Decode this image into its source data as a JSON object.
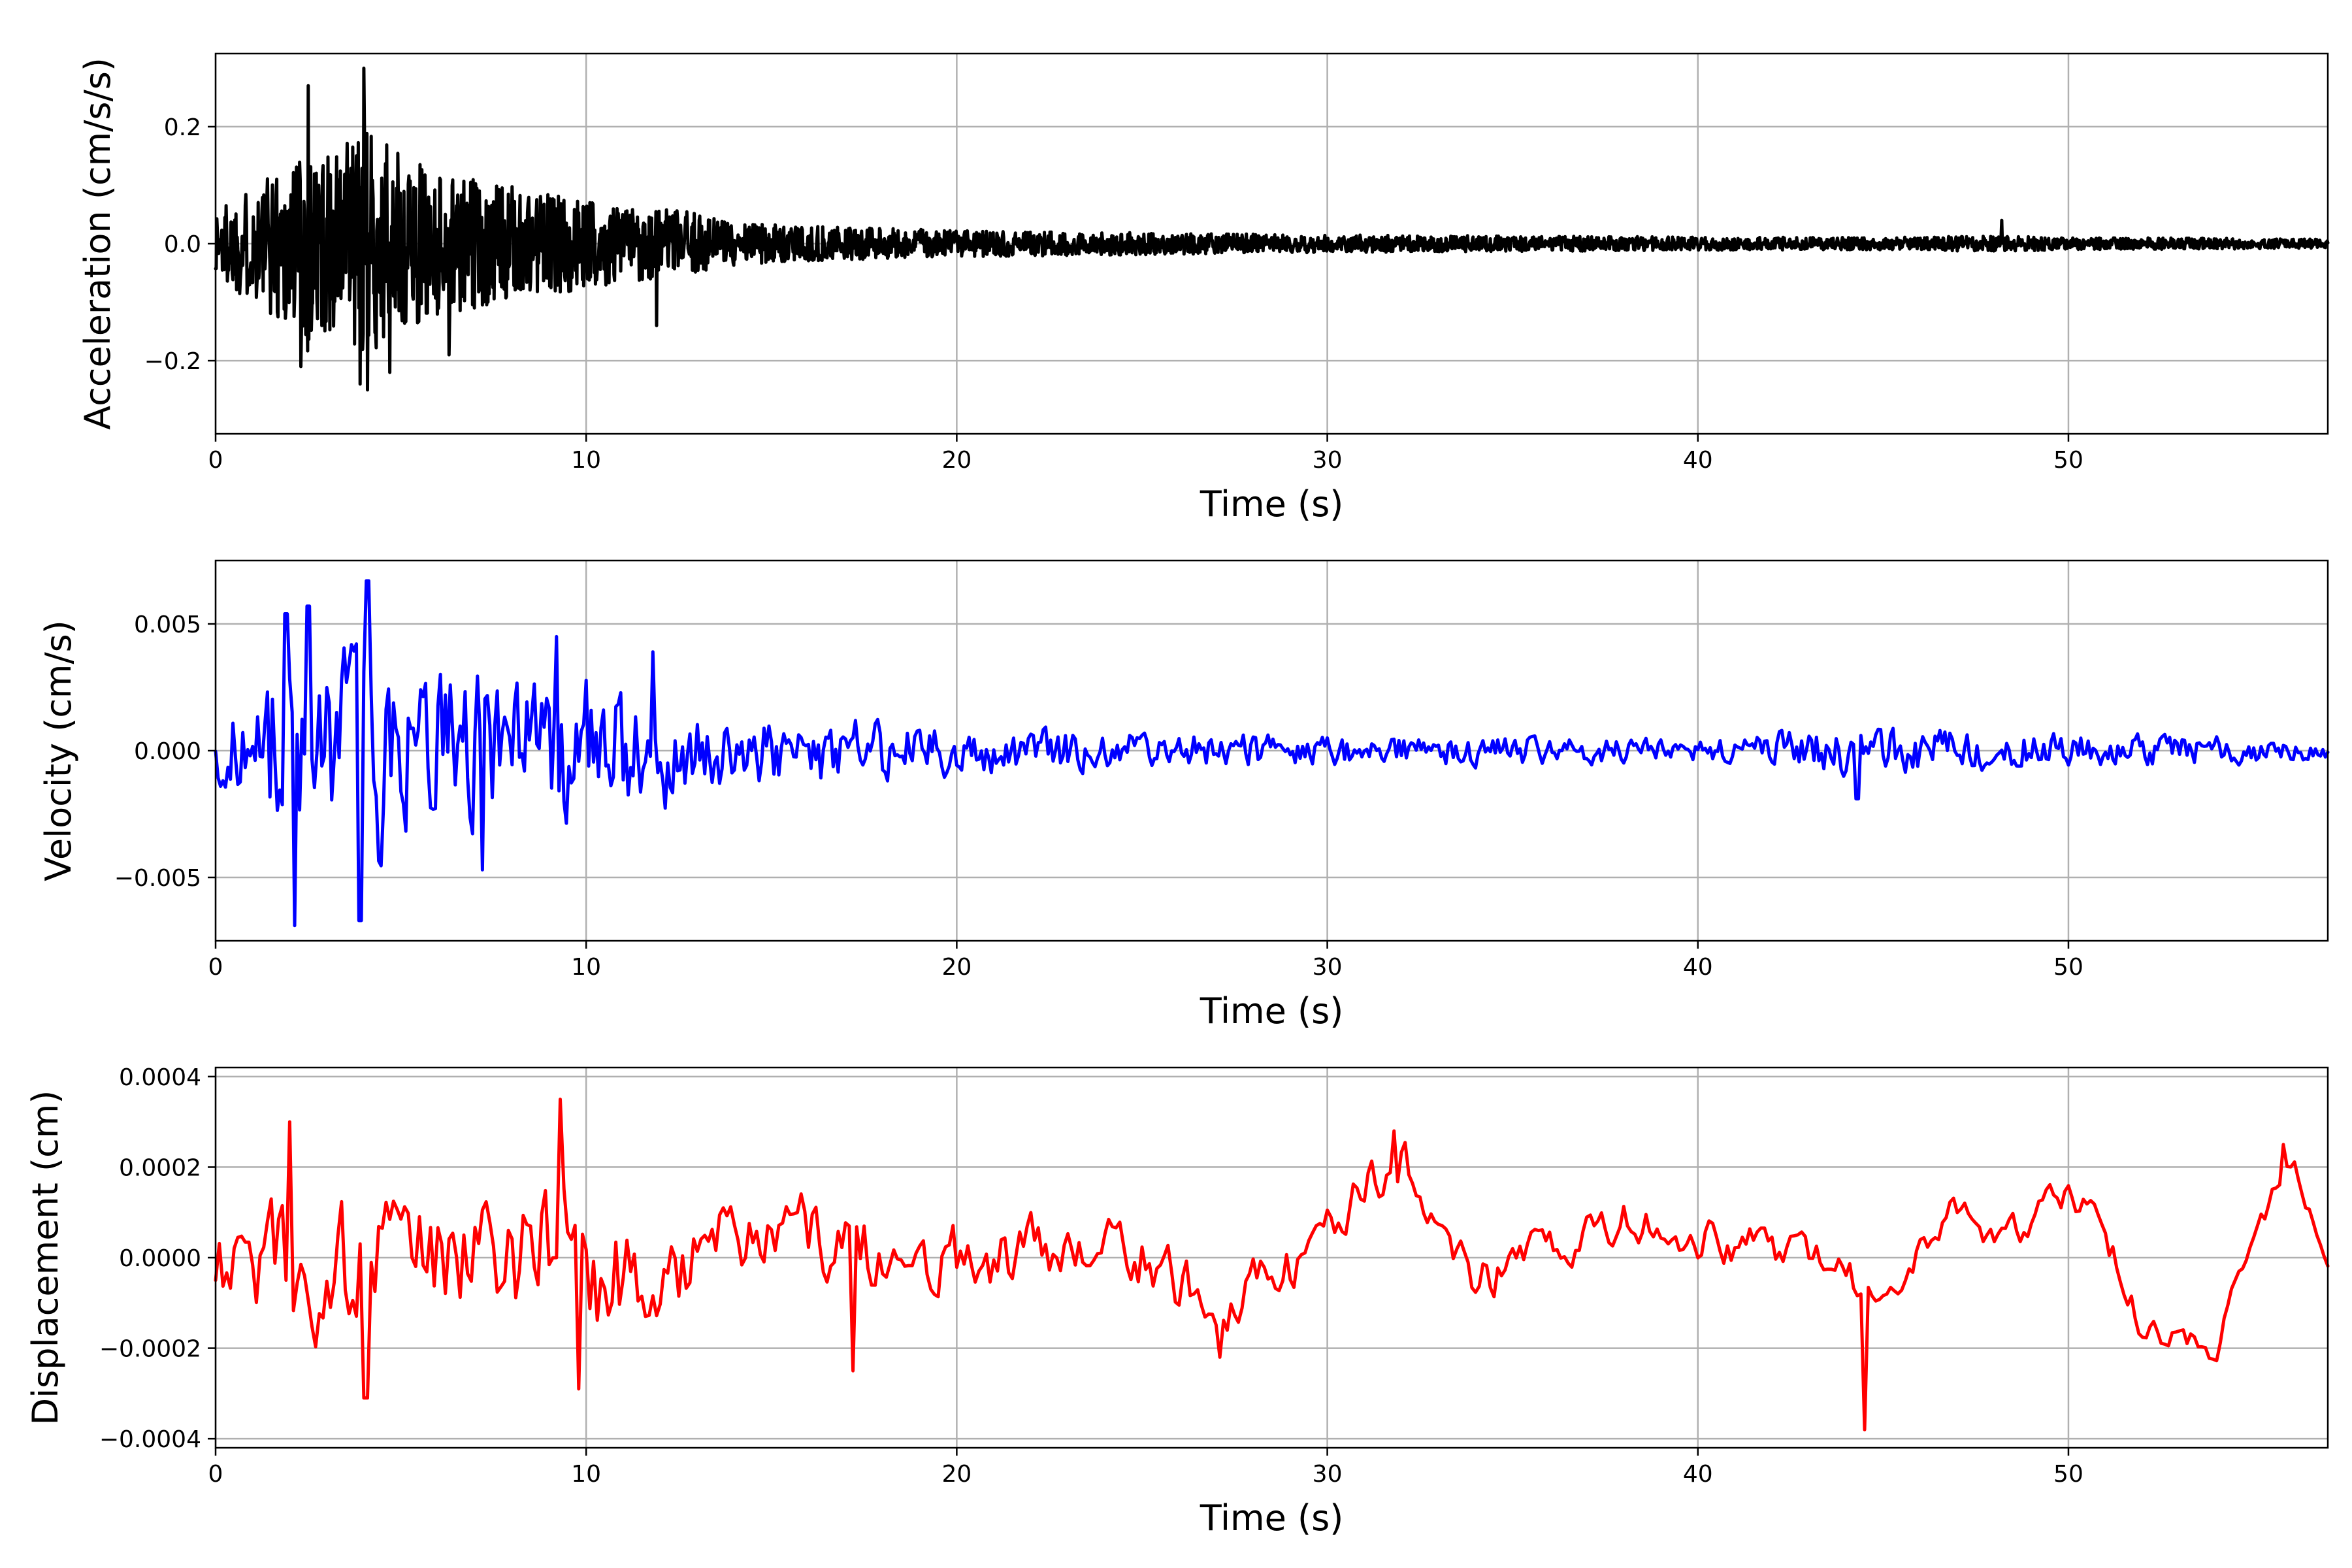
{
  "chart_data": [
    {
      "type": "line",
      "xlabel": "Time (s)",
      "ylabel": "Acceleration (cm/s/s)",
      "xlim": [
        0,
        57
      ],
      "ylim": [
        -0.325,
        0.325
      ],
      "xticks": [
        0,
        10,
        20,
        30,
        40,
        50
      ],
      "xtick_labels": [
        "0",
        "10",
        "20",
        "30",
        "40",
        "50"
      ],
      "yticks": [
        -0.2,
        0.0,
        0.2
      ],
      "ytick_labels": [
        "−0.2",
        "0.0",
        "0.2"
      ],
      "grid": true,
      "color": "#000000",
      "envelope": {
        "t": [
          0,
          1,
          2,
          2.5,
          3,
          4,
          5,
          6,
          7,
          8,
          9,
          10,
          11,
          12,
          13,
          14,
          16,
          18,
          20,
          25,
          30,
          35,
          40,
          45,
          48,
          50,
          55,
          57
        ],
        "amp": [
          0.09,
          0.13,
          0.2,
          0.26,
          0.2,
          0.27,
          0.2,
          0.17,
          0.15,
          0.13,
          0.12,
          0.1,
          0.09,
          0.08,
          0.07,
          0.05,
          0.04,
          0.035,
          0.03,
          0.025,
          0.02,
          0.018,
          0.015,
          0.014,
          0.018,
          0.014,
          0.012,
          0.01
        ]
      },
      "samples_per_second": 60,
      "spikes": [
        {
          "t": 2.5,
          "y": 0.27
        },
        {
          "t": 2.3,
          "y": -0.21
        },
        {
          "t": 4.0,
          "y": 0.3
        },
        {
          "t": 4.1,
          "y": -0.25
        },
        {
          "t": 3.9,
          "y": -0.24
        },
        {
          "t": 4.7,
          "y": -0.22
        },
        {
          "t": 11.9,
          "y": -0.14
        },
        {
          "t": 6.3,
          "y": -0.19
        },
        {
          "t": 48.2,
          "y": 0.04
        }
      ]
    },
    {
      "type": "line",
      "xlabel": "Time (s)",
      "ylabel": "Velocity (cm/s)",
      "xlim": [
        0,
        57
      ],
      "ylim": [
        -0.0075,
        0.0075
      ],
      "xticks": [
        0,
        10,
        20,
        30,
        40,
        50
      ],
      "xtick_labels": [
        "0",
        "10",
        "20",
        "30",
        "40",
        "50"
      ],
      "yticks": [
        -0.005,
        0.0,
        0.005
      ],
      "ytick_labels": [
        "−0.005",
        "0.000",
        "0.005"
      ],
      "grid": true,
      "color": "#0000ff",
      "envelope": {
        "t": [
          0,
          1,
          2,
          3,
          4,
          5,
          6,
          7,
          8,
          9,
          10,
          11,
          12,
          13,
          14,
          15,
          17,
          18,
          20,
          25,
          30,
          35,
          40,
          44,
          45,
          50,
          55,
          57
        ],
        "amp": [
          0.0017,
          0.0025,
          0.0055,
          0.0045,
          0.006,
          0.004,
          0.0037,
          0.0038,
          0.003,
          0.0035,
          0.0034,
          0.0028,
          0.003,
          0.0017,
          0.0017,
          0.0016,
          0.0017,
          0.0014,
          0.0011,
          0.0009,
          0.0007,
          0.0007,
          0.0005,
          0.0012,
          0.0011,
          0.0008,
          0.0006,
          0.0004
        ]
      },
      "samples_per_second": 15,
      "spikes": [
        {
          "t": 2.15,
          "y": -0.0069
        },
        {
          "t": 2.5,
          "y": 0.0057
        },
        {
          "t": 3.9,
          "y": -0.0067
        },
        {
          "t": 4.1,
          "y": 0.0067
        },
        {
          "t": 7.2,
          "y": -0.0047
        },
        {
          "t": 9.2,
          "y": 0.0045
        },
        {
          "t": 11.8,
          "y": 0.0039
        },
        {
          "t": 1.9,
          "y": 0.0054
        },
        {
          "t": 44.3,
          "y": -0.0019
        }
      ]
    },
    {
      "type": "line",
      "xlabel": "Time (s)",
      "ylabel": "Displacement (cm)",
      "xlim": [
        0,
        57
      ],
      "ylim": [
        -0.00042,
        0.00042
      ],
      "xticks": [
        0,
        10,
        20,
        30,
        40,
        50
      ],
      "xtick_labels": [
        "0",
        "10",
        "20",
        "30",
        "40",
        "50"
      ],
      "yticks": [
        -0.0004,
        -0.0002,
        0.0,
        0.0002,
        0.0004
      ],
      "ytick_labels": [
        "−0.0004",
        "−0.0002",
        "0.0000",
        "0.0002",
        "0.0004"
      ],
      "grid": true,
      "color": "#ff0000",
      "trend": {
        "t": [
          0,
          3,
          6,
          9,
          12,
          15,
          18,
          21,
          24,
          27,
          29,
          31,
          32,
          34,
          36,
          38,
          40,
          42,
          44,
          45,
          47,
          48,
          50,
          51,
          52,
          54,
          55,
          56,
          57
        ],
        "y": [
          0,
          0,
          0,
          0,
          -5e-05,
          8e-05,
          0,
          0,
          5e-05,
          -0.0001,
          -3e-05,
          0.00015,
          0.00022,
          -5e-05,
          2e-05,
          8e-05,
          4e-05,
          2e-05,
          -3e-05,
          -0.0001,
          0.00012,
          2e-05,
          0.00015,
          5e-05,
          -0.00015,
          -0.0002,
          5e-05,
          0.00022,
          1e-05
        ]
      },
      "oscillation": {
        "t": [
          0,
          3,
          5,
          8,
          10,
          12,
          15,
          20,
          25,
          30,
          40,
          50,
          57
        ],
        "amp": [
          0.0001,
          0.00018,
          0.00015,
          0.00016,
          0.00017,
          0.00012,
          0.0001,
          8e-05,
          8e-05,
          6e-05,
          5e-05,
          4e-05,
          3e-05
        ]
      },
      "samples_per_second": 10,
      "spikes": [
        {
          "t": 9.3,
          "y": 0.00035
        },
        {
          "t": 2.0,
          "y": 0.0003
        },
        {
          "t": 4.05,
          "y": -0.00031
        },
        {
          "t": 9.8,
          "y": -0.00029
        },
        {
          "t": 44.5,
          "y": -0.00038
        },
        {
          "t": 31.8,
          "y": 0.00028
        },
        {
          "t": 55.8,
          "y": 0.00025
        },
        {
          "t": 17.2,
          "y": -0.00025
        },
        {
          "t": 27.1,
          "y": -0.00022
        }
      ]
    }
  ]
}
